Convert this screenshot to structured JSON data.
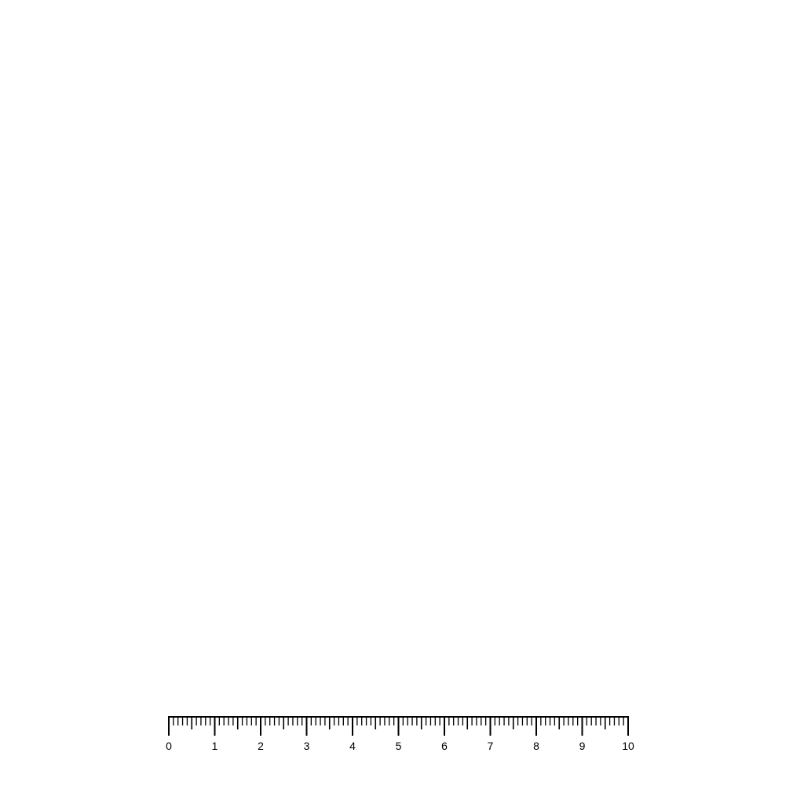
{
  "ruler": {
    "min": 0,
    "max": 10,
    "minor_divisions_per_unit": 5,
    "half_unit_mark": true,
    "labels": [
      "0",
      "1",
      "2",
      "3",
      "4",
      "5",
      "6",
      "7",
      "8",
      "9",
      "10"
    ],
    "color": "#000000"
  }
}
